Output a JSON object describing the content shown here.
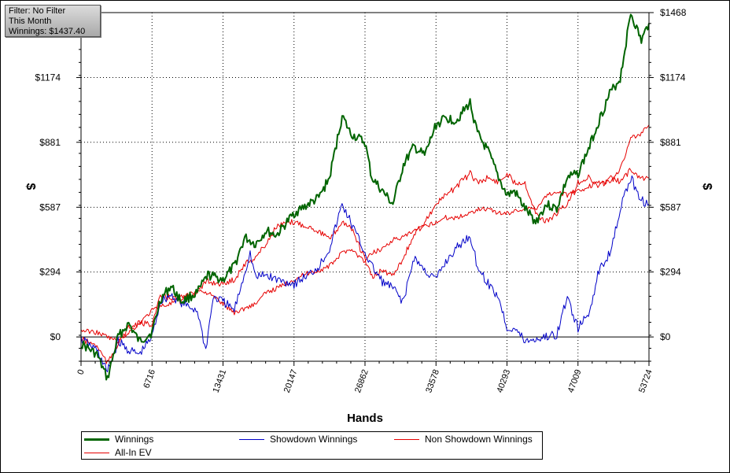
{
  "filter_box": {
    "filter_line": "Filter: No Filter",
    "period_line": "This Month",
    "winnings_line": "Winnings: $1437.40"
  },
  "chart_data": {
    "type": "line",
    "xlabel": "Hands",
    "ylabel_left": "$",
    "ylabel_right": "$",
    "xlim": [
      0,
      53724
    ],
    "ylim": [
      -110,
      1468
    ],
    "x_ticks": [
      0,
      6716,
      13431,
      20147,
      26862,
      33578,
      40293,
      47009,
      53724
    ],
    "x_tick_labels": [
      "0",
      "6716",
      "13431",
      "20147",
      "26862",
      "33578",
      "40293",
      "47009",
      "53724"
    ],
    "y_ticks": [
      0,
      294,
      587,
      881,
      1174,
      1468
    ],
    "y_tick_labels_left": [
      "$0",
      "$294",
      "$587",
      "$881",
      "$1174",
      ""
    ],
    "y_tick_labels_right": [
      "$0",
      "$294",
      "$587",
      "$881",
      "$1174",
      "$1468"
    ],
    "grid": true,
    "legend_position": "bottom",
    "series": [
      {
        "name": "Winnings",
        "color": "#006400",
        "x": [
          0,
          1500,
          2500,
          3500,
          4500,
          5500,
          6716,
          7500,
          8500,
          9500,
          11000,
          12000,
          13431,
          14500,
          15500,
          16500,
          17500,
          18500,
          20147,
          21500,
          22500,
          23500,
          24700,
          25500,
          26862,
          27500,
          28500,
          29500,
          30500,
          31500,
          32500,
          33578,
          34500,
          35500,
          36800,
          37500,
          38500,
          39500,
          40293,
          41000,
          42000,
          43000,
          44000,
          45000,
          46000,
          47009,
          48000,
          49000,
          50000,
          51000,
          52000,
          53000,
          53724
        ],
        "y": [
          -30,
          -80,
          -190,
          0,
          60,
          -20,
          20,
          170,
          230,
          160,
          200,
          280,
          260,
          320,
          450,
          420,
          480,
          460,
          560,
          600,
          630,
          720,
          1000,
          920,
          880,
          720,
          660,
          600,
          780,
          860,
          820,
          960,
          990,
          980,
          1060,
          920,
          840,
          720,
          640,
          660,
          580,
          520,
          600,
          580,
          720,
          740,
          850,
          980,
          1100,
          1170,
          1468,
          1340,
          1420
        ]
      },
      {
        "name": "Showdown Winnings",
        "color": "#0000c8",
        "x": [
          0,
          1500,
          2500,
          3500,
          4500,
          5500,
          6716,
          7500,
          8500,
          9500,
          11000,
          11800,
          12500,
          13431,
          14500,
          16000,
          16500,
          17500,
          18500,
          20147,
          21500,
          22500,
          23500,
          24700,
          25500,
          26862,
          27500,
          28500,
          29500,
          30500,
          31500,
          32500,
          33578,
          34500,
          35500,
          36800,
          37500,
          38500,
          39500,
          40293,
          41000,
          42000,
          43000,
          44000,
          45000,
          46000,
          47009,
          48000,
          49000,
          50000,
          51000,
          52000,
          53000,
          53724
        ],
        "y": [
          -10,
          -60,
          -160,
          -20,
          -60,
          -80,
          0,
          160,
          190,
          150,
          120,
          -60,
          180,
          160,
          120,
          380,
          270,
          280,
          260,
          240,
          280,
          320,
          400,
          600,
          520,
          380,
          320,
          250,
          220,
          160,
          360,
          300,
          260,
          340,
          400,
          460,
          320,
          240,
          180,
          40,
          40,
          -20,
          -10,
          0,
          10,
          180,
          40,
          100,
          300,
          380,
          580,
          720,
          620,
          600
        ]
      },
      {
        "name": "Non Showdown Winnings",
        "color": "#e60000",
        "x": [
          0,
          1500,
          2500,
          3500,
          4500,
          5500,
          6716,
          7500,
          8500,
          9500,
          11000,
          12000,
          13431,
          14500,
          15500,
          16500,
          17500,
          18500,
          20147,
          21500,
          22500,
          23500,
          24700,
          25500,
          26862,
          27500,
          28500,
          29500,
          30500,
          31500,
          32500,
          33578,
          34500,
          35500,
          36800,
          37500,
          38500,
          39500,
          40293,
          41000,
          42000,
          43000,
          44000,
          45000,
          46000,
          47009,
          48000,
          49000,
          50000,
          51000,
          52000,
          53000,
          53724
        ],
        "y": [
          30,
          20,
          0,
          -20,
          20,
          60,
          120,
          140,
          150,
          180,
          210,
          200,
          150,
          110,
          130,
          150,
          200,
          220,
          260,
          290,
          300,
          320,
          380,
          400,
          340,
          380,
          400,
          440,
          450,
          480,
          500,
          520,
          540,
          540,
          560,
          580,
          580,
          560,
          560,
          570,
          580,
          580,
          640,
          660,
          640,
          660,
          680,
          700,
          700,
          760,
          900,
          920,
          960
        ]
      },
      {
        "name": "All-In EV",
        "color": "#e60000",
        "x": [
          0,
          1500,
          2500,
          3500,
          4500,
          5500,
          6716,
          7500,
          8500,
          9500,
          11000,
          12000,
          13431,
          14500,
          15500,
          16500,
          17500,
          18500,
          20147,
          21500,
          22500,
          23500,
          24700,
          25500,
          26862,
          27500,
          28500,
          29500,
          30500,
          31500,
          32500,
          33578,
          34500,
          35500,
          36800,
          37500,
          38500,
          39500,
          40293,
          41000,
          42000,
          43000,
          44000,
          45000,
          46000,
          47009,
          48000,
          49000,
          50000,
          51000,
          52000,
          53000,
          53724
        ],
        "y": [
          -10,
          -40,
          -120,
          -30,
          40,
          60,
          60,
          180,
          180,
          160,
          210,
          250,
          240,
          260,
          330,
          360,
          420,
          500,
          520,
          500,
          480,
          440,
          520,
          500,
          350,
          270,
          300,
          280,
          360,
          460,
          520,
          600,
          640,
          680,
          740,
          700,
          720,
          700,
          740,
          700,
          700,
          560,
          520,
          560,
          600,
          700,
          720,
          680,
          720,
          700,
          760,
          720,
          720
        ]
      }
    ]
  }
}
